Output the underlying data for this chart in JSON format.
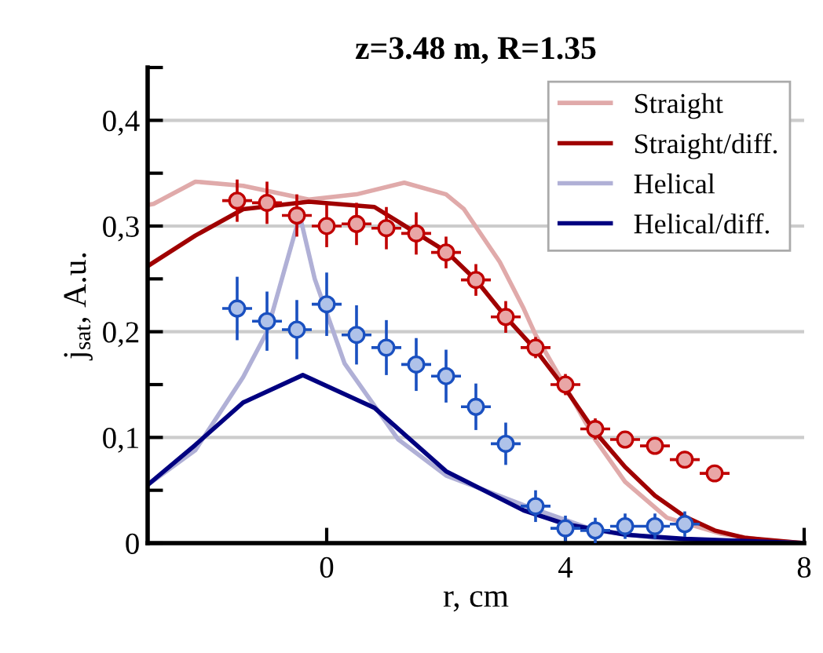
{
  "chart_data": {
    "type": "line",
    "title": "z=3.48 m, R=1.35",
    "xlabel": "r, cm",
    "ylabel": "j$_{sat}$, A.u.",
    "xlim": [
      -3,
      8
    ],
    "xticks": [
      0,
      4,
      8
    ],
    "ylim": [
      0,
      0.45
    ],
    "yticks": [
      0,
      {
        "value": 0.05,
        "label": null
      },
      {
        "value": 0.1,
        "label": "0,1"
      },
      {
        "value": 0.15,
        "label": null
      },
      {
        "value": 0.2,
        "label": "0,2"
      },
      {
        "value": 0.25,
        "label": null
      },
      {
        "value": 0.3,
        "label": "0,3"
      },
      {
        "value": 0.35,
        "label": null
      },
      {
        "value": 0.4,
        "label": "0,4"
      },
      {
        "value": 0.45,
        "label": null
      }
    ],
    "grid": "y",
    "legend": "top right",
    "line_style": "solid",
    "series": [
      {
        "name": "Straight",
        "color": "#e0aaaa",
        "x": [
          -3,
          -2.9,
          -2.2,
          -1.4,
          -0.3,
          0.5,
          1.3,
          2.0,
          2.3,
          2.9,
          3.3,
          3.5,
          4.0,
          4.5,
          5.0,
          5.7,
          6.6,
          7.3,
          8
        ],
        "values": [
          0.32,
          0.321,
          0.342,
          0.338,
          0.325,
          0.33,
          0.341,
          0.33,
          0.316,
          0.266,
          0.222,
          0.197,
          0.148,
          0.098,
          0.058,
          0.024,
          0.009,
          0.003,
          0
        ]
      },
      {
        "name": "Straight/diff.",
        "color": "#a00000",
        "x": [
          -3,
          -2.2,
          -1.4,
          -0.3,
          0.8,
          2.0,
          2.5,
          3.0,
          3.5,
          4.0,
          4.5,
          5.0,
          5.5,
          6.0,
          6.5,
          7.0,
          8
        ],
        "values": [
          0.262,
          0.291,
          0.316,
          0.323,
          0.318,
          0.276,
          0.249,
          0.214,
          0.183,
          0.146,
          0.105,
          0.072,
          0.045,
          0.025,
          0.012,
          0.005,
          0
        ]
      },
      {
        "name": "Helical",
        "color": "#b0b0d6",
        "x": [
          -3,
          -2.2,
          -1.4,
          -1.0,
          -0.7,
          -0.45,
          -0.2,
          0.3,
          1.2,
          2.0,
          3.3,
          4.5,
          5.5,
          6.5,
          8
        ],
        "values": [
          0.055,
          0.088,
          0.157,
          0.2,
          0.26,
          0.31,
          0.25,
          0.17,
          0.098,
          0.064,
          0.036,
          0.012,
          0.005,
          0.002,
          0
        ]
      },
      {
        "name": "Helical/diff.",
        "color": "#000080",
        "x": [
          -3,
          -2.2,
          -1.4,
          -0.4,
          0.8,
          2.0,
          3.3,
          4.0,
          5.0,
          6.0,
          7.0,
          8
        ],
        "values": [
          0.055,
          0.093,
          0.133,
          0.159,
          0.128,
          0.068,
          0.031,
          0.018,
          0.008,
          0.004,
          0.002,
          0
        ]
      },
      {
        "type": "scatter",
        "marker": "circle",
        "color": "#c00000",
        "x": [
          -1.5,
          -1.0,
          -0.5,
          0,
          0.5,
          1.0,
          1.5,
          2.0,
          2.5,
          3.0,
          3.5,
          4.0,
          4.5,
          5.0,
          5.5,
          6.0,
          6.5
        ],
        "values": [
          0.324,
          0.322,
          0.31,
          0.3,
          0.302,
          0.298,
          0.293,
          0.275,
          0.249,
          0.214,
          0.185,
          0.15,
          0.108,
          0.098,
          0.092,
          0.079,
          0.066
        ],
        "errors": [
          0.02,
          0.02,
          0.02,
          0.02,
          0.02,
          0.02,
          0.02,
          0.015,
          0.015,
          0.015,
          0.01,
          0.01,
          0.01,
          0.008,
          0.008,
          0.008,
          0.008
        ],
        "xerrors": [
          0.25,
          0.25,
          0.25,
          0.25,
          0.25,
          0.25,
          0.25,
          0.25,
          0.25,
          0.25,
          0.25,
          0.25,
          0.25,
          0.25,
          0.25,
          0.25,
          0.25
        ]
      },
      {
        "type": "scatter",
        "marker": "circle",
        "color": "#1a50c0",
        "x": [
          -1.5,
          -1.0,
          -0.5,
          0,
          0.5,
          1.0,
          1.5,
          2.0,
          2.5,
          3.0,
          3.5,
          4.0,
          4.5,
          5.0,
          5.5,
          6.0
        ],
        "values": [
          0.222,
          0.21,
          0.202,
          0.226,
          0.197,
          0.185,
          0.169,
          0.158,
          0.129,
          0.094,
          0.035,
          0.014,
          0.012,
          0.016,
          0.016,
          0.018
        ],
        "errors": [
          0.03,
          0.028,
          0.028,
          0.03,
          0.028,
          0.026,
          0.025,
          0.025,
          0.022,
          0.02,
          0.015,
          0.012,
          0.012,
          0.012,
          0.012,
          0.012
        ],
        "xerrors": [
          0.25,
          0.25,
          0.25,
          0.25,
          0.25,
          0.25,
          0.25,
          0.25,
          0.25,
          0.25,
          0.25,
          0.25,
          0.25,
          0.25,
          0.25,
          0.25
        ]
      }
    ]
  }
}
